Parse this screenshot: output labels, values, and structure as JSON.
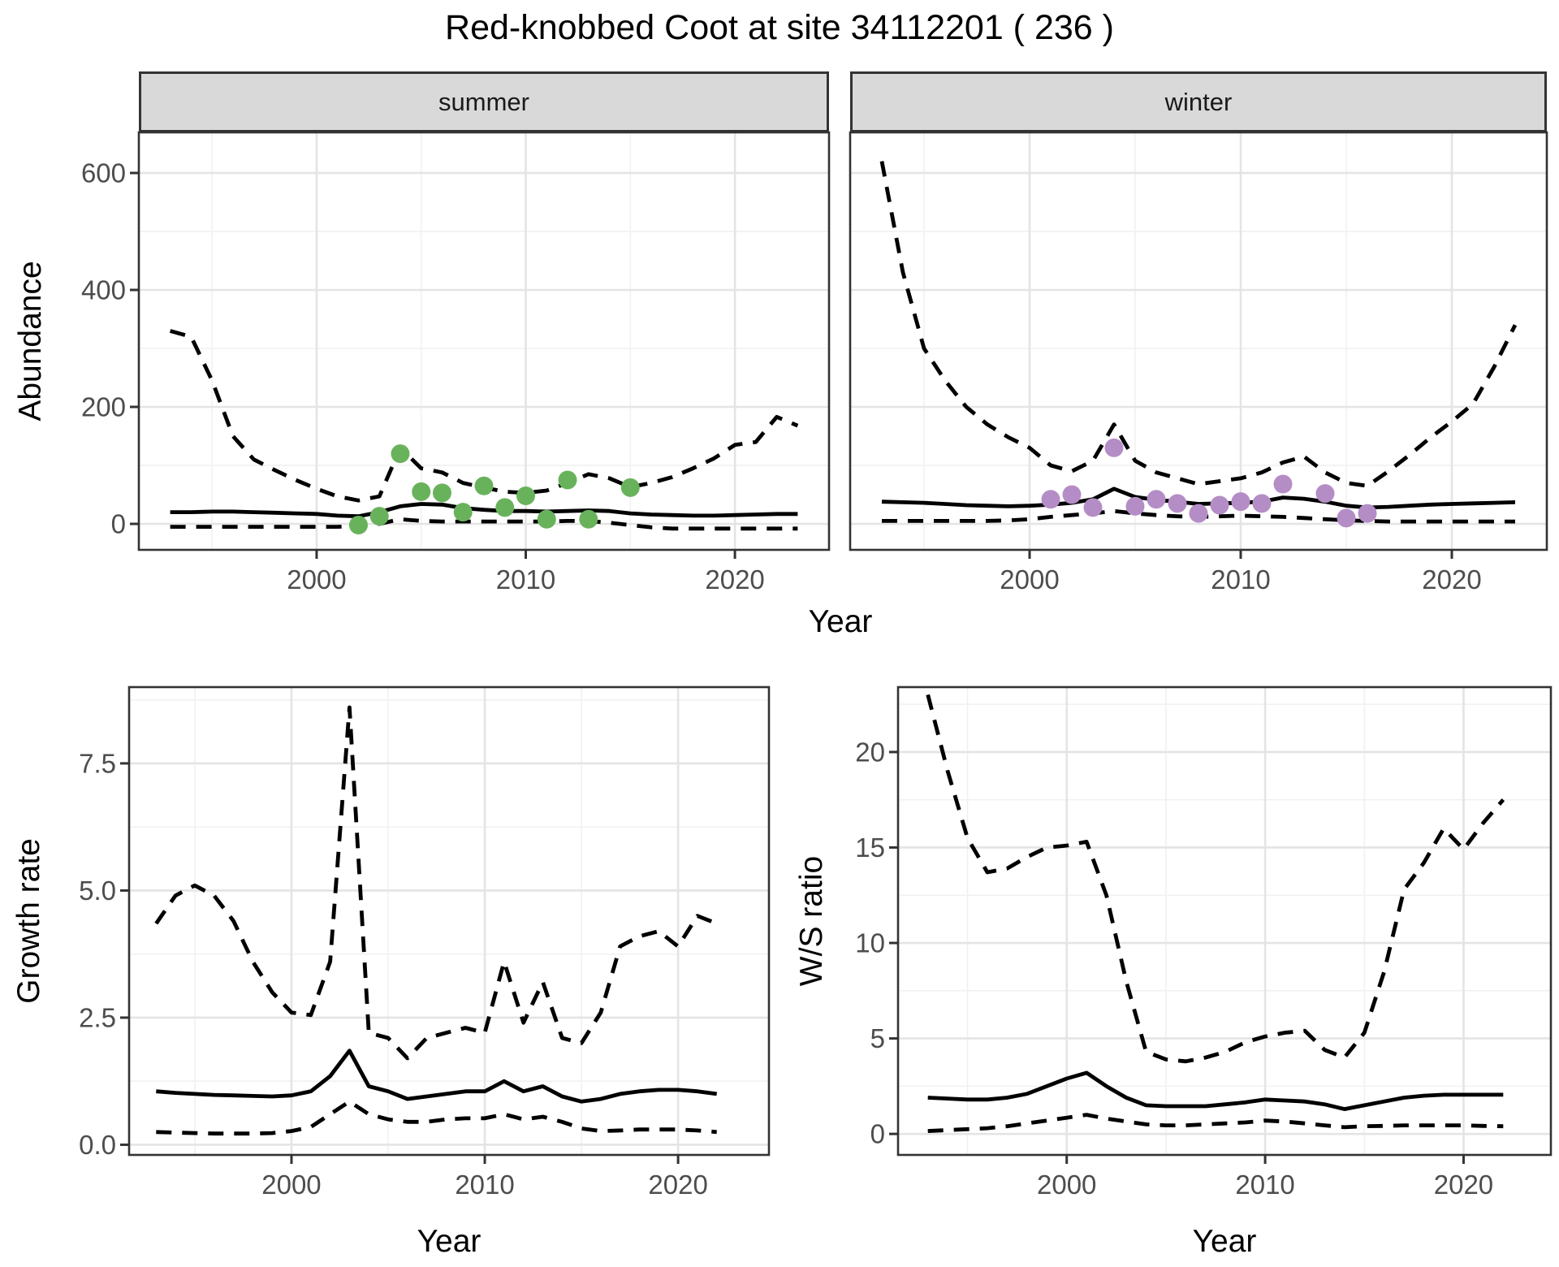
{
  "title": "Red-knobbed Coot at site 34112201 ( 236 )",
  "facets": [
    {
      "label": "summer"
    },
    {
      "label": "winter"
    }
  ],
  "axis_titles": {
    "abundance": "Abundance",
    "year_top": "Year",
    "growth": "Growth rate",
    "year_bottom_left": "Year",
    "ws": "W/S ratio",
    "year_bottom_right": "Year"
  },
  "colors": {
    "summer_point": "#69b25c",
    "winter_point": "#b58dc6",
    "line": "#000000",
    "grid_major": "#e4e4e4",
    "grid_minor": "#f1f1f1",
    "panel_border": "#333333",
    "tick_mark": "#333333",
    "tick_text": "#4d4d4d",
    "strip_bg": "#d9d9d9"
  },
  "chart_data": [
    {
      "id": "abundance_summer",
      "type": "line",
      "facet": "summer",
      "xlabel": "Year",
      "ylabel": "Abundance",
      "xlim": [
        1991.5,
        2024.5
      ],
      "ylim": [
        -44.4,
        669.4
      ],
      "xticks": {
        "values": [
          2000,
          2010,
          2020
        ],
        "labels": [
          "2000",
          "2010",
          "2020"
        ],
        "minor": [
          1995,
          2005,
          2015
        ]
      },
      "yticks": {
        "values": [
          0,
          200,
          400,
          600
        ],
        "labels": [
          "0",
          "200",
          "400",
          "600"
        ],
        "minor": [
          100,
          300,
          500
        ]
      },
      "x": [
        1993,
        1994,
        1995,
        1996,
        1997,
        1998,
        1999,
        2000,
        2001,
        2002,
        2003,
        2004,
        2005,
        2006,
        2007,
        2008,
        2009,
        2010,
        2011,
        2012,
        2013,
        2014,
        2015,
        2016,
        2017,
        2018,
        2019,
        2020,
        2021,
        2022,
        2023
      ],
      "series": [
        {
          "name": "upper_ci_dashed",
          "style": "dashed",
          "y": [
            330,
            320,
            245,
            150,
            110,
            92,
            75,
            60,
            47,
            40,
            47,
            130,
            95,
            88,
            70,
            62,
            55,
            53,
            57,
            70,
            85,
            78,
            63,
            70,
            80,
            95,
            112,
            135,
            140,
            183,
            168
          ]
        },
        {
          "name": "median_solid",
          "style": "solid",
          "y": [
            20,
            20,
            21,
            21,
            20,
            19,
            18,
            17,
            14,
            13,
            20,
            30,
            34,
            33,
            27,
            24,
            22,
            22,
            21,
            22,
            23,
            22,
            18,
            16,
            15,
            14,
            14,
            15,
            16,
            17,
            17
          ]
        },
        {
          "name": "lower_ci_dashed",
          "style": "dashed",
          "y": [
            -5,
            -5,
            -5,
            -5,
            -5,
            -5,
            -5,
            -5,
            -5,
            -3,
            0,
            8,
            5,
            4,
            4,
            4,
            4,
            4,
            4,
            5,
            5,
            2,
            -2,
            -6,
            -8,
            -8,
            -8,
            -8,
            -8,
            -8,
            -8
          ]
        }
      ],
      "points": {
        "name": "observed_summer_counts",
        "color_key": "summer_point",
        "x": [
          2002,
          2003,
          2004,
          2005,
          2006,
          2007,
          2008,
          2009,
          2010,
          2011,
          2012,
          2013,
          2015
        ],
        "y": [
          -2,
          13,
          120,
          55,
          53,
          20,
          65,
          28,
          48,
          8,
          75,
          8,
          62
        ]
      }
    },
    {
      "id": "abundance_winter",
      "type": "line",
      "facet": "winter",
      "xlabel": "Year",
      "ylabel": "Abundance",
      "xlim": [
        1991.5,
        2024.5
      ],
      "ylim": [
        -44.4,
        669.4
      ],
      "xticks": {
        "values": [
          2000,
          2010,
          2020
        ],
        "labels": [
          "2000",
          "2010",
          "2020"
        ],
        "minor": [
          1995,
          2005,
          2015
        ]
      },
      "yticks": {
        "values": [
          0,
          200,
          400,
          600
        ],
        "labels": [
          "0",
          "200",
          "400",
          "600"
        ],
        "minor": [
          100,
          300,
          500
        ]
      },
      "x": [
        1993,
        1994,
        1995,
        1996,
        1997,
        1998,
        1999,
        2000,
        2001,
        2002,
        2003,
        2004,
        2005,
        2006,
        2007,
        2008,
        2009,
        2010,
        2011,
        2012,
        2013,
        2014,
        2015,
        2016,
        2017,
        2018,
        2019,
        2020,
        2021,
        2022,
        2023
      ],
      "series": [
        {
          "name": "upper_ci_dashed",
          "style": "dashed",
          "y": [
            620,
            430,
            300,
            245,
            200,
            170,
            148,
            130,
            100,
            90,
            108,
            170,
            108,
            88,
            78,
            68,
            73,
            78,
            88,
            105,
            115,
            88,
            70,
            65,
            90,
            118,
            148,
            175,
            205,
            268,
            340
          ]
        },
        {
          "name": "median_solid",
          "style": "solid",
          "y": [
            38,
            37,
            36,
            34,
            32,
            31,
            30,
            31,
            33,
            36,
            42,
            60,
            46,
            41,
            38,
            34,
            35,
            36,
            38,
            45,
            43,
            38,
            31,
            28,
            29,
            31,
            33,
            34,
            35,
            36,
            37
          ]
        },
        {
          "name": "lower_ci_dashed",
          "style": "dashed",
          "y": [
            5,
            5,
            5,
            5,
            5,
            5,
            6,
            8,
            12,
            15,
            18,
            22,
            18,
            15,
            13,
            12,
            13,
            14,
            13,
            12,
            10,
            8,
            6,
            5,
            4,
            4,
            4,
            4,
            4,
            4,
            4
          ]
        }
      ],
      "points": {
        "name": "observed_winter_counts",
        "color_key": "winter_point",
        "x": [
          2001,
          2002,
          2003,
          2004,
          2005,
          2006,
          2007,
          2008,
          2009,
          2010,
          2011,
          2012,
          2014,
          2015,
          2016
        ],
        "y": [
          42,
          50,
          28,
          130,
          30,
          42,
          35,
          18,
          32,
          38,
          35,
          68,
          52,
          10,
          18
        ]
      }
    },
    {
      "id": "growth_rate",
      "type": "line",
      "xlabel": "Year",
      "ylabel": "Growth rate",
      "xlim": [
        1991.6,
        2024.7
      ],
      "ylim": [
        -0.2,
        9.0
      ],
      "xticks": {
        "values": [
          2000,
          2010,
          2020
        ],
        "labels": [
          "2000",
          "2010",
          "2020"
        ],
        "minor": [
          1995,
          2005,
          2015
        ]
      },
      "yticks": {
        "values": [
          0,
          2.5,
          5,
          7.5
        ],
        "labels": [
          "0.0",
          "2.5",
          "5.0",
          "7.5"
        ],
        "minor": [
          1.25,
          3.75,
          6.25,
          8.75
        ]
      },
      "x": [
        1993,
        1994,
        1995,
        1996,
        1997,
        1998,
        1999,
        2000,
        2001,
        2002,
        2003,
        2004,
        2005,
        2006,
        2007,
        2008,
        2009,
        2010,
        2011,
        2012,
        2013,
        2014,
        2015,
        2016,
        2017,
        2018,
        2019,
        2020,
        2021,
        2022
      ],
      "series": [
        {
          "name": "upper_ci_dashed",
          "style": "dashed",
          "y": [
            4.35,
            4.9,
            5.1,
            4.9,
            4.4,
            3.6,
            3.0,
            2.6,
            2.55,
            3.6,
            8.6,
            2.2,
            2.1,
            1.7,
            2.1,
            2.2,
            2.3,
            2.2,
            3.6,
            2.4,
            3.2,
            2.1,
            2.0,
            2.6,
            3.9,
            4.1,
            4.2,
            3.9,
            4.5,
            4.35
          ]
        },
        {
          "name": "median_solid",
          "style": "solid",
          "y": [
            1.05,
            1.02,
            1.0,
            0.98,
            0.97,
            0.96,
            0.95,
            0.97,
            1.05,
            1.35,
            1.85,
            1.15,
            1.05,
            0.9,
            0.95,
            1.0,
            1.05,
            1.05,
            1.25,
            1.05,
            1.15,
            0.95,
            0.85,
            0.9,
            1.0,
            1.05,
            1.08,
            1.08,
            1.05,
            1.0
          ]
        },
        {
          "name": "lower_ci_dashed",
          "style": "dashed",
          "y": [
            0.25,
            0.24,
            0.23,
            0.22,
            0.22,
            0.22,
            0.23,
            0.27,
            0.35,
            0.6,
            0.85,
            0.6,
            0.5,
            0.45,
            0.45,
            0.5,
            0.52,
            0.52,
            0.6,
            0.5,
            0.55,
            0.45,
            0.32,
            0.27,
            0.28,
            0.3,
            0.3,
            0.3,
            0.28,
            0.25
          ]
        }
      ]
    },
    {
      "id": "ws_ratio",
      "type": "line",
      "xlabel": "Year",
      "ylabel": "W/S ratio",
      "xlim": [
        1991.5,
        2024.4
      ],
      "ylim": [
        -1.1,
        23.4
      ],
      "xticks": {
        "values": [
          2000,
          2010,
          2020
        ],
        "labels": [
          "2000",
          "2010",
          "2020"
        ],
        "minor": [
          1995,
          2005,
          2015
        ]
      },
      "yticks": {
        "values": [
          0,
          5,
          10,
          15,
          20
        ],
        "labels": [
          "0",
          "5",
          "10",
          "15",
          "20"
        ],
        "minor": [
          2.5,
          7.5,
          12.5,
          17.5,
          22.5
        ]
      },
      "x": [
        1993,
        1994,
        1995,
        1996,
        1997,
        1998,
        1999,
        2000,
        2001,
        2002,
        2003,
        2004,
        2005,
        2006,
        2007,
        2008,
        2009,
        2010,
        2011,
        2012,
        2013,
        2014,
        2015,
        2016,
        2017,
        2018,
        2019,
        2020,
        2021,
        2022
      ],
      "series": [
        {
          "name": "upper_ci_dashed",
          "style": "dashed",
          "y": [
            23,
            19,
            15.5,
            13.7,
            13.9,
            14.5,
            15.0,
            15.1,
            15.3,
            12.5,
            8.0,
            4.3,
            3.9,
            3.8,
            4.0,
            4.3,
            4.8,
            5.1,
            5.3,
            5.4,
            4.4,
            4.0,
            5.3,
            8.5,
            12.8,
            14.2,
            16.0,
            14.9,
            16.3,
            17.5
          ]
        },
        {
          "name": "median_solid",
          "style": "solid",
          "y": [
            1.9,
            1.85,
            1.8,
            1.8,
            1.9,
            2.1,
            2.5,
            2.9,
            3.2,
            2.5,
            1.9,
            1.5,
            1.45,
            1.45,
            1.45,
            1.55,
            1.65,
            1.8,
            1.75,
            1.7,
            1.55,
            1.3,
            1.5,
            1.7,
            1.9,
            2.0,
            2.05,
            2.05,
            2.05,
            2.05
          ]
        },
        {
          "name": "lower_ci_dashed",
          "style": "dashed",
          "y": [
            0.15,
            0.2,
            0.25,
            0.3,
            0.4,
            0.55,
            0.7,
            0.85,
            1.0,
            0.8,
            0.65,
            0.5,
            0.45,
            0.45,
            0.5,
            0.55,
            0.6,
            0.7,
            0.65,
            0.55,
            0.45,
            0.35,
            0.4,
            0.42,
            0.45,
            0.45,
            0.45,
            0.45,
            0.42,
            0.4
          ]
        }
      ]
    }
  ]
}
